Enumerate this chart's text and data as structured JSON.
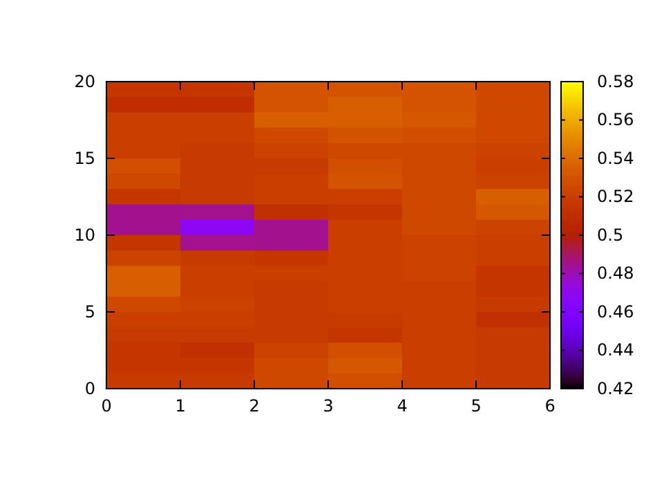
{
  "chart_data": {
    "type": "heatmap",
    "cells": [
      [
        0.515,
        0.515,
        0.53,
        0.53,
        0.53,
        0.525
      ],
      [
        0.51,
        0.51,
        0.53,
        0.535,
        0.53,
        0.525
      ],
      [
        0.52,
        0.52,
        0.535,
        0.535,
        0.532,
        0.525
      ],
      [
        0.52,
        0.52,
        0.525,
        0.53,
        0.528,
        0.525
      ],
      [
        0.52,
        0.518,
        0.522,
        0.525,
        0.525,
        0.522
      ],
      [
        0.528,
        0.518,
        0.518,
        0.528,
        0.525,
        0.52
      ],
      [
        0.525,
        0.518,
        0.52,
        0.53,
        0.525,
        0.522
      ],
      [
        0.515,
        0.518,
        0.52,
        0.52,
        0.525,
        0.535
      ],
      [
        0.485,
        0.485,
        0.512,
        0.515,
        0.525,
        0.532
      ],
      [
        0.485,
        0.468,
        0.485,
        0.52,
        0.525,
        0.522
      ],
      [
        0.515,
        0.485,
        0.485,
        0.52,
        0.522,
        0.52
      ],
      [
        0.522,
        0.518,
        0.515,
        0.52,
        0.522,
        0.52
      ],
      [
        0.535,
        0.52,
        0.52,
        0.52,
        0.522,
        0.515
      ],
      [
        0.535,
        0.52,
        0.518,
        0.52,
        0.52,
        0.515
      ],
      [
        0.525,
        0.522,
        0.518,
        0.52,
        0.52,
        0.518
      ],
      [
        0.52,
        0.52,
        0.518,
        0.518,
        0.52,
        0.512
      ],
      [
        0.518,
        0.518,
        0.518,
        0.515,
        0.52,
        0.518
      ],
      [
        0.515,
        0.512,
        0.522,
        0.528,
        0.52,
        0.518
      ],
      [
        0.515,
        0.515,
        0.525,
        0.532,
        0.52,
        0.518
      ],
      [
        0.518,
        0.518,
        0.525,
        0.528,
        0.52,
        0.518
      ]
    ],
    "xlim": [
      0,
      6
    ],
    "xticks": [
      0,
      1,
      2,
      3,
      4,
      5,
      6
    ],
    "ylim": [
      0,
      20
    ],
    "yticks": [
      0,
      5,
      10,
      15,
      20
    ],
    "clim": [
      0.42,
      0.58
    ],
    "cticks": [
      0.42,
      0.44,
      0.46,
      0.48,
      0.5,
      0.52,
      0.54,
      0.56,
      0.58
    ]
  }
}
